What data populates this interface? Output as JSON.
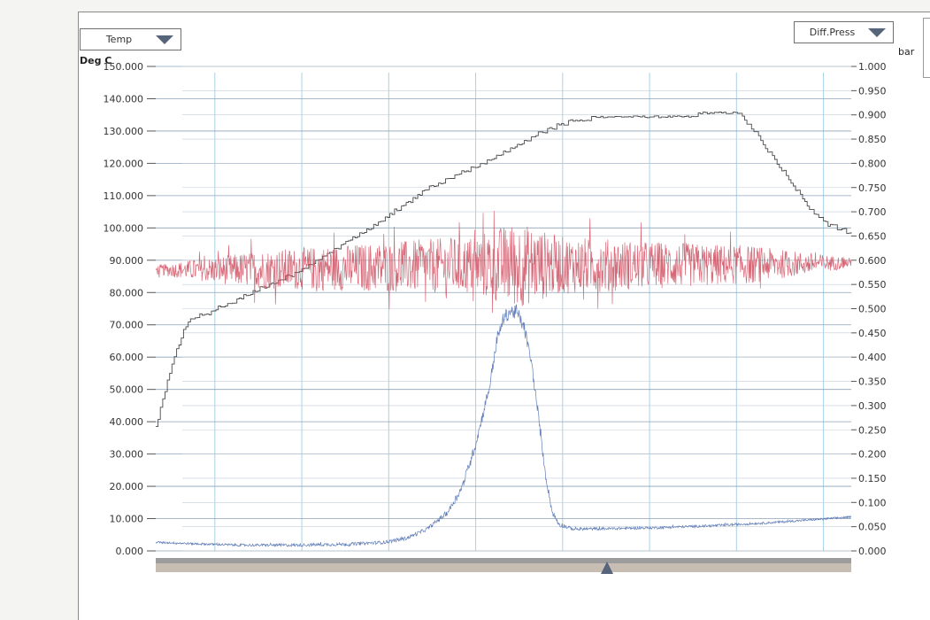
{
  "left_axis": {
    "selector_label": "Temp",
    "unit": "Deg C"
  },
  "right_axis": {
    "selector_label": "Diff.Press",
    "unit": "bar"
  },
  "chart_data": {
    "type": "line",
    "y_left": {
      "unit": "Deg C",
      "ylim": [
        0,
        150
      ],
      "ticks": [
        "0.000",
        "10.000",
        "20.000",
        "30.000",
        "40.000",
        "50.000",
        "60.000",
        "70.000",
        "80.000",
        "90.000",
        "100.000",
        "110.000",
        "120.000",
        "130.000",
        "140.000",
        "150.000"
      ]
    },
    "y_right": {
      "unit": "bar",
      "ylim": [
        0,
        1
      ],
      "ticks": [
        "0.000",
        "0.050",
        "0.100",
        "0.150",
        "0.200",
        "0.250",
        "0.300",
        "0.350",
        "0.400",
        "0.450",
        "0.500",
        "0.550",
        "0.600",
        "0.650",
        "0.700",
        "0.750",
        "0.800",
        "0.850",
        "0.900",
        "0.950",
        "1.000"
      ]
    },
    "x_range": [
      0,
      100
    ],
    "vertical_grid_x": [
      8.5,
      21,
      33.5,
      46,
      58.5,
      71,
      83.5,
      96
    ],
    "grid": true,
    "series": [
      {
        "color": "#4a4a4a",
        "axis": "left",
        "style": "stepped",
        "points": [
          [
            0,
            38
          ],
          [
            1,
            47
          ],
          [
            2,
            55
          ],
          [
            3,
            62
          ],
          [
            4,
            68
          ],
          [
            5,
            72
          ],
          [
            7,
            73
          ],
          [
            9,
            75
          ],
          [
            12,
            78
          ],
          [
            15,
            81
          ],
          [
            18,
            84
          ],
          [
            21,
            87
          ],
          [
            24,
            91
          ],
          [
            27,
            95
          ],
          [
            31,
            100
          ],
          [
            35,
            106
          ],
          [
            39,
            112
          ],
          [
            44,
            117
          ],
          [
            49,
            122
          ],
          [
            53,
            127
          ],
          [
            58,
            132
          ],
          [
            60,
            133
          ],
          [
            63,
            134
          ],
          [
            66,
            134
          ],
          [
            70,
            134.5
          ],
          [
            74,
            134.5
          ],
          [
            78,
            135
          ],
          [
            84,
            135
          ],
          [
            86,
            130
          ],
          [
            88,
            124
          ],
          [
            90,
            118
          ],
          [
            92,
            112
          ],
          [
            94,
            106
          ],
          [
            96,
            102
          ],
          [
            98,
            100
          ],
          [
            100,
            98
          ]
        ]
      },
      {
        "color": "#d25a6a",
        "axis": "right",
        "style": "noisy",
        "points": [
          [
            0,
            0.58
          ],
          [
            10,
            0.58
          ],
          [
            20,
            0.582
          ],
          [
            30,
            0.585
          ],
          [
            40,
            0.588
          ],
          [
            50,
            0.59
          ],
          [
            60,
            0.59
          ],
          [
            70,
            0.59
          ],
          [
            80,
            0.59
          ],
          [
            90,
            0.592
          ],
          [
            100,
            0.595
          ]
        ],
        "noise_amplitude": [
          [
            0,
            0.01
          ],
          [
            5,
            0.02
          ],
          [
            15,
            0.04
          ],
          [
            30,
            0.05
          ],
          [
            45,
            0.06
          ],
          [
            52,
            0.09
          ],
          [
            58,
            0.06
          ],
          [
            70,
            0.05
          ],
          [
            85,
            0.04
          ],
          [
            95,
            0.02
          ],
          [
            100,
            0.01
          ]
        ]
      },
      {
        "color": "#4f6fb0",
        "axis": "right",
        "style": "noisy",
        "points": [
          [
            0,
            0.018
          ],
          [
            5,
            0.015
          ],
          [
            12,
            0.012
          ],
          [
            20,
            0.012
          ],
          [
            28,
            0.014
          ],
          [
            33,
            0.018
          ],
          [
            36,
            0.026
          ],
          [
            39,
            0.045
          ],
          [
            42,
            0.08
          ],
          [
            44,
            0.13
          ],
          [
            46,
            0.22
          ],
          [
            48,
            0.34
          ],
          [
            49,
            0.43
          ],
          [
            50,
            0.48
          ],
          [
            51,
            0.495
          ],
          [
            52,
            0.49
          ],
          [
            53,
            0.46
          ],
          [
            54,
            0.39
          ],
          [
            55,
            0.28
          ],
          [
            56,
            0.16
          ],
          [
            57,
            0.08
          ],
          [
            58,
            0.055
          ],
          [
            60,
            0.045
          ],
          [
            65,
            0.046
          ],
          [
            72,
            0.048
          ],
          [
            80,
            0.052
          ],
          [
            88,
            0.058
          ],
          [
            94,
            0.064
          ],
          [
            100,
            0.07
          ]
        ],
        "noise_amplitude": [
          [
            0,
            0.002
          ],
          [
            40,
            0.004
          ],
          [
            48,
            0.012
          ],
          [
            52,
            0.015
          ],
          [
            56,
            0.008
          ],
          [
            60,
            0.003
          ],
          [
            100,
            0.002
          ]
        ]
      }
    ]
  }
}
